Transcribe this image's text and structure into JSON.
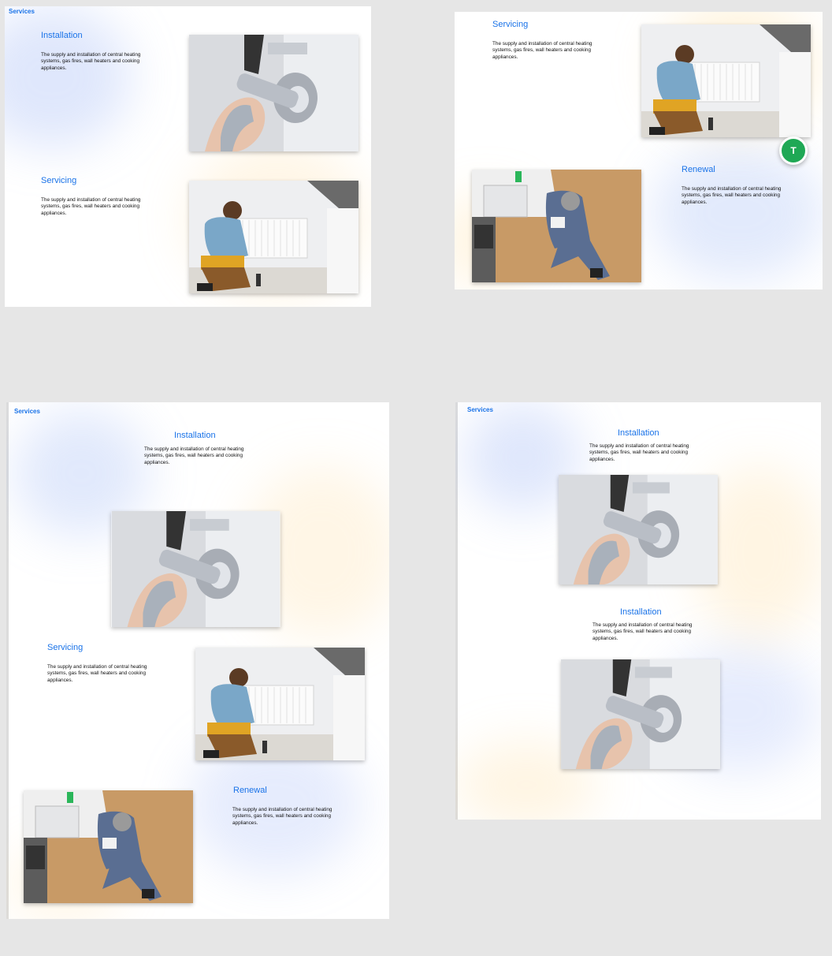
{
  "services_label": "Services",
  "titles": {
    "installation": "Installation",
    "servicing": "Servicing",
    "renewal": "Renewal"
  },
  "description": "The supply and installation of central heating systems, gas fires, wall heaters and cooking appliances.",
  "avatar_initial": "T",
  "colors": {
    "accent": "#1a73e8",
    "avatar": "#1fa855",
    "canvas": "#e6e6e6"
  }
}
